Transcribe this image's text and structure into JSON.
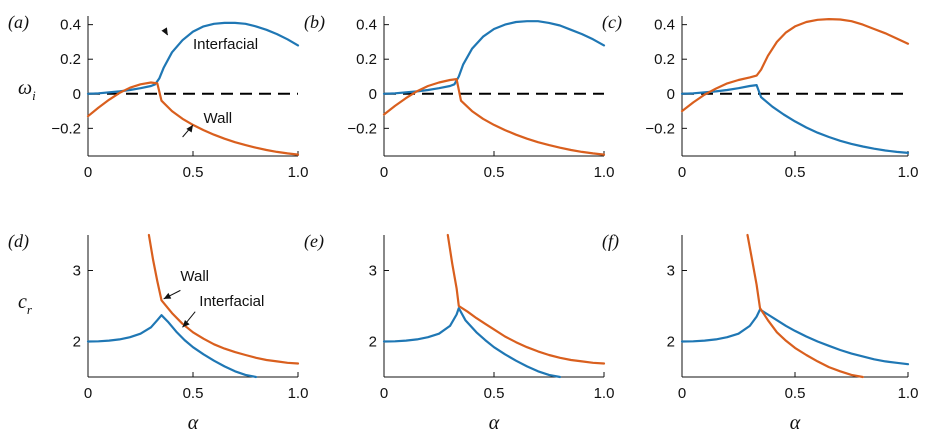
{
  "colors": {
    "interfacial": "#1f77b4",
    "wall": "#d95f1e",
    "axis": "#111111",
    "zero_line": "#000000"
  },
  "chart_data": [
    {
      "id": "a",
      "panel_label": "(a)",
      "type": "line",
      "ylabel": "ω",
      "ylabel_sub": "i",
      "xlabel": "",
      "xlim": [
        0,
        1
      ],
      "ylim": [
        -0.36,
        0.45
      ],
      "xticks": [
        0,
        0.5,
        1.0
      ],
      "xtick_labels": [
        "0",
        "0.5",
        "1.0"
      ],
      "yticks": [
        -0.2,
        0,
        0.2,
        0.4
      ],
      "ytick_labels": [
        "−0.2",
        "0",
        "0.2",
        "0.4"
      ],
      "zero_line": true,
      "series": [
        {
          "key": "interfacial",
          "x": [
            0,
            0.05,
            0.1,
            0.15,
            0.2,
            0.25,
            0.3,
            0.32,
            0.34,
            0.36,
            0.4,
            0.45,
            0.5,
            0.55,
            0.6,
            0.65,
            0.7,
            0.75,
            0.8,
            0.85,
            0.9,
            0.95,
            1.0
          ],
          "y": [
            0,
            0.003,
            0.008,
            0.014,
            0.022,
            0.032,
            0.045,
            0.055,
            0.09,
            0.15,
            0.24,
            0.31,
            0.36,
            0.39,
            0.405,
            0.41,
            0.41,
            0.405,
            0.39,
            0.37,
            0.345,
            0.315,
            0.28
          ]
        },
        {
          "key": "wall",
          "x": [
            0,
            0.05,
            0.1,
            0.15,
            0.2,
            0.25,
            0.3,
            0.33,
            0.35,
            0.4,
            0.45,
            0.5,
            0.55,
            0.6,
            0.65,
            0.7,
            0.75,
            0.8,
            0.85,
            0.9,
            0.95,
            1.0
          ],
          "y": [
            -0.13,
            -0.08,
            -0.035,
            0.005,
            0.035,
            0.055,
            0.065,
            0.06,
            -0.04,
            -0.1,
            -0.145,
            -0.18,
            -0.21,
            -0.237,
            -0.26,
            -0.28,
            -0.297,
            -0.312,
            -0.325,
            -0.336,
            -0.345,
            -0.352
          ]
        }
      ],
      "annotations": [
        {
          "text": "Interfacial",
          "tx": 0.5,
          "ty": 0.26,
          "ax": 0.37,
          "ay": 0.36,
          "pointer": [
            0.38,
            0.34
          ]
        },
        {
          "text": "Wall",
          "tx": 0.55,
          "ty": -0.17,
          "ax": 0.46,
          "ay": -0.25,
          "pointer": [
            0.5,
            -0.18
          ]
        }
      ]
    },
    {
      "id": "b",
      "panel_label": "(b)",
      "type": "line",
      "ylabel": "",
      "ylabel_sub": "",
      "xlabel": "",
      "xlim": [
        0,
        1
      ],
      "ylim": [
        -0.36,
        0.45
      ],
      "xticks": [
        0,
        0.5,
        1.0
      ],
      "xtick_labels": [
        "0",
        "0.5",
        "1.0"
      ],
      "yticks": [
        -0.2,
        0,
        0.2,
        0.4
      ],
      "ytick_labels": [
        "−0.2",
        "0",
        "0.2",
        "0.4"
      ],
      "zero_line": true,
      "series": [
        {
          "key": "interfacial",
          "x": [
            0,
            0.05,
            0.1,
            0.15,
            0.2,
            0.25,
            0.3,
            0.32,
            0.34,
            0.36,
            0.4,
            0.45,
            0.5,
            0.55,
            0.6,
            0.65,
            0.7,
            0.75,
            0.8,
            0.85,
            0.9,
            0.95,
            1.0
          ],
          "y": [
            0,
            0.003,
            0.008,
            0.014,
            0.022,
            0.032,
            0.045,
            0.055,
            0.1,
            0.17,
            0.26,
            0.33,
            0.375,
            0.4,
            0.415,
            0.42,
            0.42,
            0.41,
            0.395,
            0.37,
            0.345,
            0.315,
            0.28
          ]
        },
        {
          "key": "wall",
          "x": [
            0,
            0.05,
            0.1,
            0.15,
            0.2,
            0.25,
            0.3,
            0.33,
            0.35,
            0.4,
            0.45,
            0.5,
            0.55,
            0.6,
            0.65,
            0.7,
            0.75,
            0.8,
            0.85,
            0.9,
            0.95,
            1.0
          ],
          "y": [
            -0.12,
            -0.07,
            -0.025,
            0.015,
            0.045,
            0.065,
            0.08,
            0.085,
            -0.04,
            -0.1,
            -0.145,
            -0.18,
            -0.21,
            -0.237,
            -0.26,
            -0.28,
            -0.297,
            -0.312,
            -0.325,
            -0.336,
            -0.345,
            -0.352
          ]
        }
      ],
      "annotations": []
    },
    {
      "id": "c",
      "panel_label": "(c)",
      "type": "line",
      "ylabel": "",
      "ylabel_sub": "",
      "xlabel": "",
      "xlim": [
        0,
        1
      ],
      "ylim": [
        -0.36,
        0.45
      ],
      "xticks": [
        0,
        0.5,
        1.0
      ],
      "xtick_labels": [
        "0",
        "0.5",
        "1.0"
      ],
      "yticks": [
        -0.2,
        0,
        0.2,
        0.4
      ],
      "ytick_labels": [
        "−0.2",
        "0",
        "0.2",
        "0.4"
      ],
      "zero_line": true,
      "series": [
        {
          "key": "interfacial",
          "x": [
            0,
            0.05,
            0.1,
            0.15,
            0.2,
            0.25,
            0.3,
            0.33,
            0.35,
            0.4,
            0.45,
            0.5,
            0.55,
            0.6,
            0.65,
            0.7,
            0.75,
            0.8,
            0.85,
            0.9,
            0.95,
            1.0
          ],
          "y": [
            0,
            0.003,
            0.008,
            0.014,
            0.022,
            0.032,
            0.045,
            0.05,
            -0.02,
            -0.075,
            -0.12,
            -0.16,
            -0.195,
            -0.225,
            -0.25,
            -0.272,
            -0.29,
            -0.305,
            -0.318,
            -0.328,
            -0.336,
            -0.342
          ]
        },
        {
          "key": "wall",
          "x": [
            0,
            0.05,
            0.1,
            0.15,
            0.2,
            0.25,
            0.3,
            0.33,
            0.35,
            0.38,
            0.42,
            0.46,
            0.5,
            0.55,
            0.6,
            0.65,
            0.7,
            0.75,
            0.8,
            0.85,
            0.9,
            0.95,
            1.0
          ],
          "y": [
            -0.1,
            -0.05,
            -0.005,
            0.03,
            0.06,
            0.08,
            0.095,
            0.105,
            0.14,
            0.22,
            0.3,
            0.355,
            0.39,
            0.415,
            0.428,
            0.432,
            0.43,
            0.42,
            0.4,
            0.375,
            0.35,
            0.32,
            0.29
          ]
        }
      ],
      "annotations": []
    },
    {
      "id": "d",
      "panel_label": "(d)",
      "type": "line",
      "ylabel": "c",
      "ylabel_sub": "r",
      "xlabel": "α",
      "xlim": [
        0,
        1
      ],
      "ylim": [
        1.5,
        3.5
      ],
      "xticks": [
        0,
        0.5,
        1.0
      ],
      "xtick_labels": [
        "0",
        "0.5",
        "1.0"
      ],
      "yticks": [
        2,
        3
      ],
      "ytick_labels": [
        "2",
        "3"
      ],
      "zero_line": false,
      "series": [
        {
          "key": "interfacial",
          "x": [
            0,
            0.05,
            0.1,
            0.15,
            0.2,
            0.25,
            0.3,
            0.33,
            0.35,
            0.38,
            0.42,
            0.46,
            0.5,
            0.55,
            0.6,
            0.65,
            0.7,
            0.75,
            0.8
          ],
          "y": [
            2.0,
            2.003,
            2.012,
            2.03,
            2.06,
            2.11,
            2.2,
            2.3,
            2.37,
            2.28,
            2.14,
            2.02,
            1.92,
            1.82,
            1.73,
            1.65,
            1.58,
            1.53,
            1.5
          ]
        },
        {
          "key": "wall",
          "x": [
            0.29,
            0.31,
            0.33,
            0.35,
            0.4,
            0.45,
            0.5,
            0.55,
            0.6,
            0.65,
            0.7,
            0.75,
            0.8,
            0.85,
            0.9,
            0.95,
            1.0
          ],
          "y": [
            3.5,
            3.15,
            2.85,
            2.58,
            2.4,
            2.25,
            2.13,
            2.04,
            1.96,
            1.9,
            1.85,
            1.81,
            1.77,
            1.74,
            1.72,
            1.7,
            1.69
          ]
        }
      ],
      "annotations": [
        {
          "text": "Wall",
          "tx": 0.44,
          "ty": 2.85,
          "ax": 0.44,
          "ay": 2.72,
          "pointer": [
            0.36,
            2.6
          ]
        },
        {
          "text": "Interfacial",
          "tx": 0.53,
          "ty": 2.5,
          "ax": 0.52,
          "ay": 2.42,
          "pointer": [
            0.45,
            2.2
          ]
        }
      ]
    },
    {
      "id": "e",
      "panel_label": "(e)",
      "type": "line",
      "ylabel": "",
      "ylabel_sub": "",
      "xlabel": "α",
      "xlim": [
        0,
        1
      ],
      "ylim": [
        1.5,
        3.5
      ],
      "xticks": [
        0,
        0.5,
        1.0
      ],
      "xtick_labels": [
        "0",
        "0.5",
        "1.0"
      ],
      "yticks": [
        2,
        3
      ],
      "ytick_labels": [
        "2",
        "3"
      ],
      "zero_line": false,
      "series": [
        {
          "key": "interfacial",
          "x": [
            0,
            0.05,
            0.1,
            0.15,
            0.2,
            0.25,
            0.3,
            0.33,
            0.34,
            0.37,
            0.42,
            0.46,
            0.5,
            0.55,
            0.6,
            0.65,
            0.7,
            0.75,
            0.8
          ],
          "y": [
            2.0,
            2.003,
            2.012,
            2.03,
            2.06,
            2.11,
            2.22,
            2.38,
            2.47,
            2.3,
            2.13,
            2.02,
            1.92,
            1.82,
            1.73,
            1.65,
            1.58,
            1.53,
            1.5
          ]
        },
        {
          "key": "wall",
          "x": [
            0.29,
            0.31,
            0.33,
            0.34,
            0.38,
            0.42,
            0.46,
            0.5,
            0.55,
            0.6,
            0.65,
            0.7,
            0.75,
            0.8,
            0.85,
            0.9,
            0.95,
            1.0
          ],
          "y": [
            3.5,
            3.1,
            2.75,
            2.5,
            2.42,
            2.33,
            2.25,
            2.17,
            2.07,
            1.99,
            1.92,
            1.86,
            1.81,
            1.77,
            1.74,
            1.72,
            1.7,
            1.69
          ]
        }
      ],
      "annotations": []
    },
    {
      "id": "f",
      "panel_label": "(f)",
      "type": "line",
      "ylabel": "",
      "ylabel_sub": "",
      "xlabel": "α",
      "xlim": [
        0,
        1
      ],
      "ylim": [
        1.5,
        3.5
      ],
      "xticks": [
        0,
        0.5,
        1.0
      ],
      "xtick_labels": [
        "0",
        "0.5",
        "1.0"
      ],
      "yticks": [
        2,
        3
      ],
      "ytick_labels": [
        "2",
        "3"
      ],
      "zero_line": false,
      "series": [
        {
          "key": "interfacial",
          "x": [
            0,
            0.05,
            0.1,
            0.15,
            0.2,
            0.25,
            0.3,
            0.33,
            0.345,
            0.38,
            0.42,
            0.46,
            0.5,
            0.55,
            0.6,
            0.65,
            0.7,
            0.75,
            0.8,
            0.85,
            0.9,
            0.95,
            1.0
          ],
          "y": [
            2.0,
            2.003,
            2.012,
            2.03,
            2.06,
            2.11,
            2.22,
            2.35,
            2.45,
            2.38,
            2.3,
            2.22,
            2.15,
            2.07,
            2.0,
            1.94,
            1.88,
            1.83,
            1.79,
            1.75,
            1.72,
            1.7,
            1.68
          ]
        },
        {
          "key": "wall",
          "x": [
            0.29,
            0.31,
            0.33,
            0.345,
            0.38,
            0.42,
            0.46,
            0.5,
            0.55,
            0.6,
            0.65,
            0.7,
            0.75,
            0.8
          ],
          "y": [
            3.5,
            3.15,
            2.8,
            2.47,
            2.3,
            2.13,
            2.01,
            1.91,
            1.81,
            1.72,
            1.64,
            1.58,
            1.53,
            1.5
          ]
        }
      ],
      "annotations": []
    }
  ]
}
